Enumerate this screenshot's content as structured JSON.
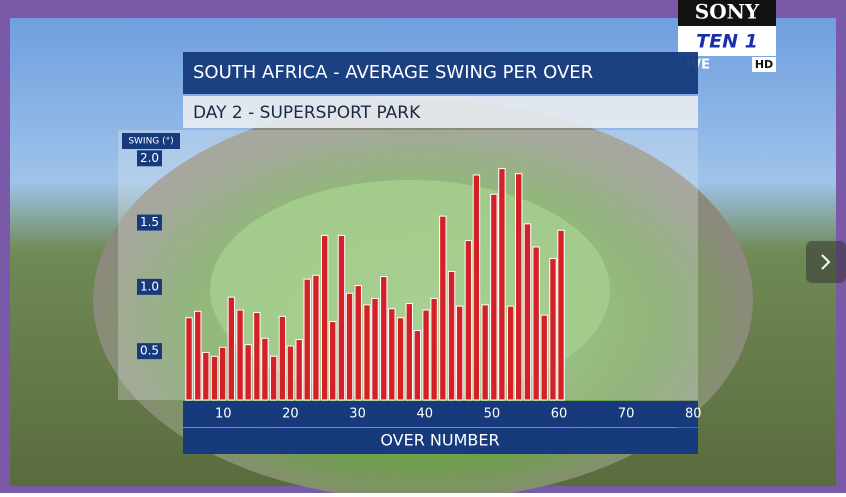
{
  "chart_data": {
    "type": "bar",
    "title": "SOUTH AFRICA - AVERAGE SWING PER OVER",
    "subtitle": "DAY 2 - SUPERSPORT PARK",
    "y_label": "SWING (°)",
    "x_label": "OVER NUMBER",
    "color": "#d42128",
    "x": [
      4.9,
      6.2,
      7.4,
      8.7,
      9.9,
      11.2,
      12.5,
      13.7,
      15.0,
      16.2,
      17.5,
      18.8,
      20.0,
      21.3,
      22.5,
      23.8,
      25.1,
      26.3,
      27.6,
      28.8,
      30.1,
      31.4,
      32.6,
      33.9,
      35.1,
      36.4,
      37.7,
      38.9,
      40.2,
      41.4,
      42.7,
      44.0,
      45.2,
      46.5,
      47.7,
      49.0,
      50.3,
      51.5,
      52.8,
      54.0,
      55.3,
      56.6,
      57.8,
      59.1,
      60.3
    ],
    "values": [
      0.76,
      0.81,
      0.49,
      0.46,
      0.53,
      0.92,
      0.82,
      0.55,
      0.8,
      0.6,
      0.46,
      0.77,
      0.54,
      0.59,
      1.06,
      1.09,
      1.4,
      0.73,
      1.4,
      0.95,
      1.01,
      0.86,
      0.91,
      1.08,
      0.83,
      0.76,
      0.87,
      0.66,
      0.82,
      0.91,
      1.55,
      1.12,
      0.85,
      1.36,
      1.87,
      0.86,
      1.72,
      1.92,
      0.85,
      1.88,
      1.49,
      1.31,
      0.78,
      1.22,
      1.44
    ],
    "xlim": [
      4,
      81
    ],
    "xticks": [
      10,
      20,
      30,
      40,
      50,
      60,
      70,
      80
    ],
    "ylim": [
      0.12,
      2.22
    ],
    "yticks": [
      0.5,
      {
        "value": 1.0,
        "label": "1.0"
      },
      1.5,
      {
        "value": 2.0,
        "label": "2.0"
      }
    ]
  },
  "broadcast": {
    "channel": "SONY",
    "network": "TEN 1",
    "live": "LIVE",
    "quality": "HD"
  }
}
